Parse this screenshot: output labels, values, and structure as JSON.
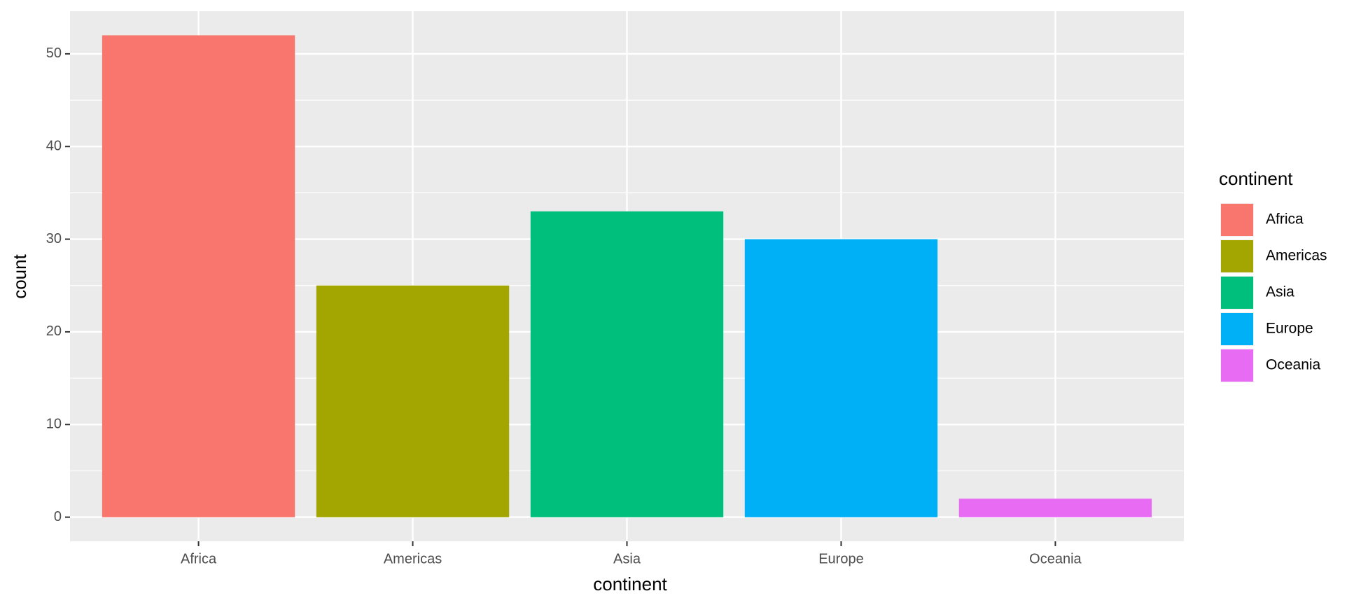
{
  "chart_data": {
    "type": "bar",
    "x_label": "continent",
    "y_label": "count",
    "categories": [
      "Africa",
      "Americas",
      "Asia",
      "Europe",
      "Oceania"
    ],
    "values": [
      52,
      25,
      33,
      30,
      2
    ],
    "colors": [
      "#f8766d",
      "#a3a500",
      "#00bf7d",
      "#00b0f6",
      "#e76bf3"
    ],
    "ylim": [
      -2.6,
      54.6
    ],
    "yticks": [
      0,
      10,
      20,
      30,
      40,
      50
    ],
    "grid": true,
    "legend_title": "continent",
    "legend_position": "right"
  }
}
